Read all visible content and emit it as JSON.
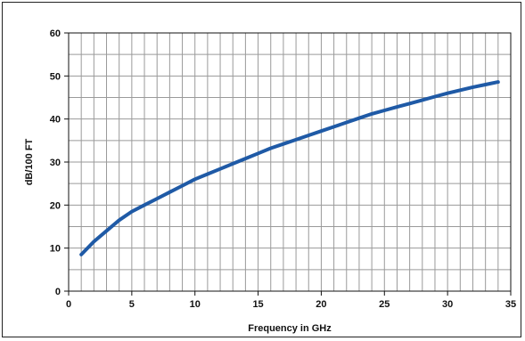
{
  "chart_data": {
    "type": "line",
    "title": "",
    "xlabel": "Frequency in GHz",
    "ylabel": "dB/100 FT",
    "xlim": [
      0,
      35
    ],
    "ylim": [
      0,
      60
    ],
    "x_ticks": [
      0,
      5,
      10,
      15,
      20,
      25,
      30,
      35
    ],
    "y_ticks": [
      0,
      10,
      20,
      30,
      40,
      50,
      60
    ],
    "x_minor_step": 1,
    "y_minor_step": 5,
    "grid": true,
    "colors": {
      "line": "#1f5aa6",
      "grid": "#9a9a9a",
      "axis": "#111111"
    },
    "series": [
      {
        "x": [
          1,
          2,
          3,
          4,
          5,
          6,
          7,
          8,
          9,
          10,
          11,
          12,
          13,
          14,
          15,
          16,
          17,
          18,
          19,
          20,
          21,
          22,
          23,
          24,
          25,
          26,
          27,
          28,
          29,
          30,
          31,
          32,
          33,
          34
        ],
        "values": [
          8.5,
          11.5,
          14.0,
          16.5,
          18.5,
          20.0,
          21.5,
          23.0,
          24.5,
          26.0,
          27.2,
          28.4,
          29.6,
          30.8,
          32.0,
          33.2,
          34.2,
          35.2,
          36.2,
          37.2,
          38.2,
          39.2,
          40.2,
          41.2,
          42.0,
          42.8,
          43.6,
          44.4,
          45.2,
          46.0,
          46.7,
          47.4,
          48.0,
          48.6
        ]
      }
    ]
  }
}
